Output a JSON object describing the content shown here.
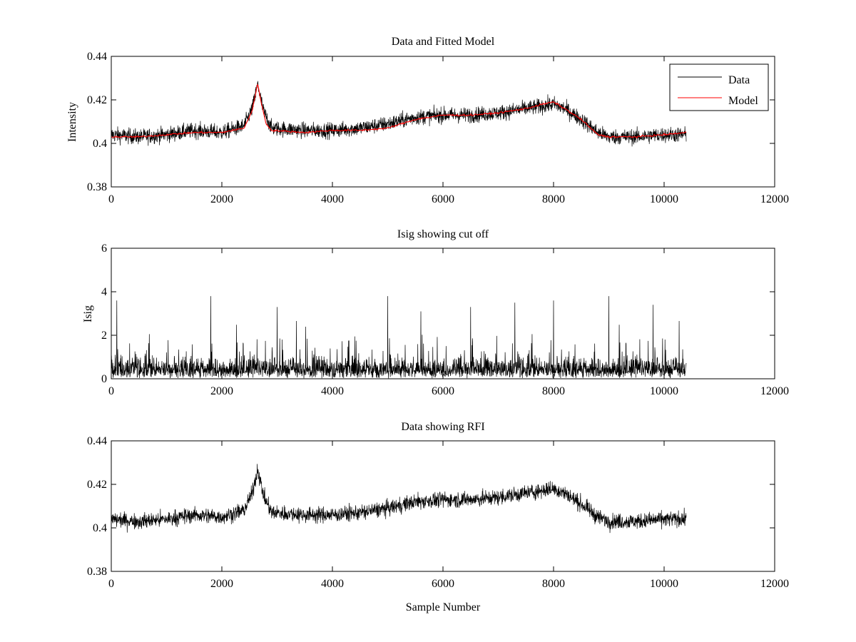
{
  "chart_data": [
    {
      "type": "line",
      "title": "Data and Fitted Model",
      "xlabel": "",
      "ylabel": "Intensity",
      "xlim": [
        0,
        12000
      ],
      "ylim": [
        0.38,
        0.44
      ],
      "xticks": [
        "0",
        "2000",
        "4000",
        "6000",
        "8000",
        "10000",
        "12000"
      ],
      "yticks": [
        "0.38",
        "0.4",
        "0.42",
        "0.44"
      ],
      "legend": {
        "placement": "top-right"
      },
      "series": [
        {
          "name": "Data",
          "color": "#000000",
          "style": "noisy",
          "points": [
            [
              0,
              0.404
            ],
            [
              500,
              0.403
            ],
            [
              1000,
              0.404
            ],
            [
              1500,
              0.406
            ],
            [
              2000,
              0.405
            ],
            [
              2400,
              0.408
            ],
            [
              2550,
              0.416
            ],
            [
              2650,
              0.427
            ],
            [
              2750,
              0.415
            ],
            [
              2900,
              0.407
            ],
            [
              3500,
              0.406
            ],
            [
              4000,
              0.406
            ],
            [
              4500,
              0.407
            ],
            [
              5000,
              0.409
            ],
            [
              5500,
              0.412
            ],
            [
              6000,
              0.413
            ],
            [
              6500,
              0.413
            ],
            [
              7000,
              0.414
            ],
            [
              7500,
              0.416
            ],
            [
              8000,
              0.418
            ],
            [
              8200,
              0.416
            ],
            [
              8500,
              0.411
            ],
            [
              8800,
              0.405
            ],
            [
              9000,
              0.403
            ],
            [
              9500,
              0.403
            ],
            [
              10000,
              0.404
            ],
            [
              10400,
              0.404
            ]
          ],
          "noise": 0.0035
        },
        {
          "name": "Model",
          "color": "#ff0000",
          "style": "smooth",
          "points": [
            [
              0,
              0.403
            ],
            [
              500,
              0.403
            ],
            [
              1000,
              0.404
            ],
            [
              1500,
              0.405
            ],
            [
              2000,
              0.405
            ],
            [
              2400,
              0.407
            ],
            [
              2550,
              0.415
            ],
            [
              2650,
              0.428
            ],
            [
              2700,
              0.42
            ],
            [
              2800,
              0.409
            ],
            [
              2900,
              0.406
            ],
            [
              3500,
              0.405
            ],
            [
              4000,
              0.406
            ],
            [
              4500,
              0.406
            ],
            [
              5000,
              0.407
            ],
            [
              5500,
              0.411
            ],
            [
              6000,
              0.413
            ],
            [
              6500,
              0.413
            ],
            [
              7000,
              0.414
            ],
            [
              7500,
              0.416
            ],
            [
              7800,
              0.418
            ],
            [
              8000,
              0.419
            ],
            [
              8200,
              0.416
            ],
            [
              8500,
              0.411
            ],
            [
              8800,
              0.404
            ],
            [
              9000,
              0.403
            ],
            [
              9500,
              0.403
            ],
            [
              10000,
              0.404
            ],
            [
              10400,
              0.405
            ]
          ],
          "noise": 0.0004
        }
      ]
    },
    {
      "type": "line",
      "title": "Isig showing cut off",
      "xlabel": "",
      "ylabel": "Isig",
      "xlim": [
        0,
        12000
      ],
      "ylim": [
        0,
        6
      ],
      "xticks": [
        "0",
        "2000",
        "4000",
        "6000",
        "8000",
        "10000",
        "12000"
      ],
      "yticks": [
        "0",
        "2",
        "4",
        "6"
      ],
      "series": [
        {
          "color": "#000000",
          "style": "spiky",
          "points": [
            [
              0,
              0.8
            ],
            [
              10400,
              0.8
            ]
          ],
          "noise": 0.8,
          "peaks": [
            [
              100,
              3.6
            ],
            [
              1800,
              3.8
            ],
            [
              3000,
              3.3
            ],
            [
              5000,
              3.8
            ],
            [
              5600,
              3.1
            ],
            [
              6500,
              3.3
            ],
            [
              7300,
              3.5
            ],
            [
              8000,
              3.6
            ],
            [
              9000,
              3.8
            ],
            [
              9800,
              3.4
            ]
          ]
        }
      ]
    },
    {
      "type": "line",
      "title": "Data showing RFI",
      "xlabel": "Sample Number",
      "ylabel": "",
      "xlim": [
        0,
        12000
      ],
      "ylim": [
        0.38,
        0.44
      ],
      "xticks": [
        "0",
        "2000",
        "4000",
        "6000",
        "8000",
        "10000",
        "12000"
      ],
      "yticks": [
        "0.38",
        "0.4",
        "0.42",
        "0.44"
      ],
      "series": [
        {
          "color": "#000000",
          "style": "noisy",
          "points": [
            [
              0,
              0.404
            ],
            [
              500,
              0.403
            ],
            [
              1000,
              0.404
            ],
            [
              1500,
              0.406
            ],
            [
              2000,
              0.405
            ],
            [
              2400,
              0.408
            ],
            [
              2550,
              0.416
            ],
            [
              2650,
              0.427
            ],
            [
              2750,
              0.415
            ],
            [
              2900,
              0.407
            ],
            [
              3500,
              0.406
            ],
            [
              4000,
              0.406
            ],
            [
              4500,
              0.407
            ],
            [
              5000,
              0.409
            ],
            [
              5500,
              0.412
            ],
            [
              6000,
              0.413
            ],
            [
              6500,
              0.413
            ],
            [
              7000,
              0.414
            ],
            [
              7500,
              0.416
            ],
            [
              8000,
              0.418
            ],
            [
              8200,
              0.416
            ],
            [
              8500,
              0.411
            ],
            [
              8800,
              0.405
            ],
            [
              9000,
              0.403
            ],
            [
              9500,
              0.403
            ],
            [
              10000,
              0.404
            ],
            [
              10400,
              0.404
            ]
          ],
          "noise": 0.0035
        }
      ]
    }
  ]
}
